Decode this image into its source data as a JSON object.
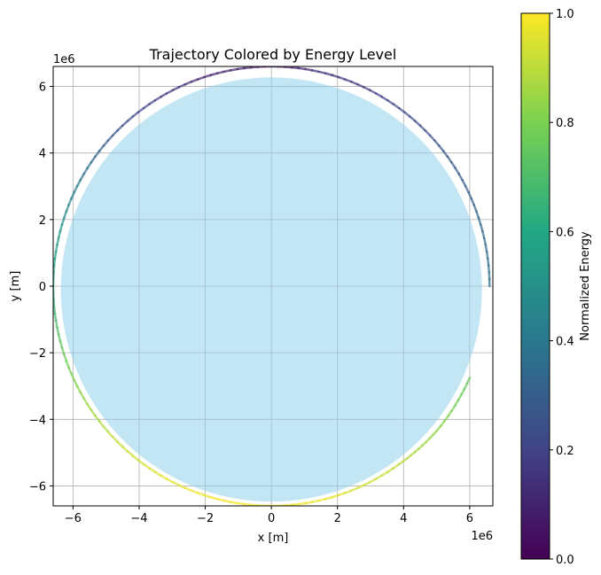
{
  "chart_data": {
    "type": "line",
    "title": "Trajectory Colored by Energy Level",
    "xlabel": "x [m]",
    "ylabel": "y [m]",
    "x_offset_label": "1e6",
    "y_offset_label": "1e6",
    "xlim": [
      -6.6,
      6.7
    ],
    "ylim": [
      -6.6,
      6.6
    ],
    "x_ticks": [
      -6,
      -4,
      -2,
      0,
      2,
      4,
      6
    ],
    "y_ticks": [
      -6,
      -4,
      -2,
      0,
      2,
      4,
      6
    ],
    "grid": true,
    "planet": {
      "center": [
        0,
        -0.1
      ],
      "radius": 6.371,
      "color": "#87CEEB",
      "alpha": 0.5
    },
    "trajectory": {
      "description_units": "x and y in units of 1e6 m; energy normalized 0-1",
      "points": [
        {
          "x": 6.6,
          "y": 0.0,
          "energy": 0.36
        },
        {
          "x": 6.27,
          "y": 2.05,
          "energy": 0.33
        },
        {
          "x": 5.33,
          "y": 3.89,
          "energy": 0.28
        },
        {
          "x": 3.86,
          "y": 5.35,
          "energy": 0.22
        },
        {
          "x": 2.03,
          "y": 6.28,
          "energy": 0.15
        },
        {
          "x": 0.0,
          "y": 6.6,
          "energy": 0.08
        },
        {
          "x": -2.03,
          "y": 6.28,
          "energy": 0.1
        },
        {
          "x": -3.86,
          "y": 5.35,
          "energy": 0.2
        },
        {
          "x": -5.33,
          "y": 3.89,
          "energy": 0.33
        },
        {
          "x": -6.27,
          "y": 2.05,
          "energy": 0.48
        },
        {
          "x": -6.6,
          "y": 0.0,
          "energy": 0.62
        },
        {
          "x": -6.27,
          "y": -2.05,
          "energy": 0.76
        },
        {
          "x": -5.33,
          "y": -3.89,
          "energy": 0.87
        },
        {
          "x": -3.86,
          "y": -5.35,
          "energy": 0.94
        },
        {
          "x": -2.03,
          "y": -6.28,
          "energy": 0.98
        },
        {
          "x": 0.0,
          "y": -6.6,
          "energy": 1.0
        },
        {
          "x": 2.03,
          "y": -6.28,
          "energy": 0.96
        },
        {
          "x": 3.86,
          "y": -5.35,
          "energy": 0.9
        },
        {
          "x": 5.0,
          "y": -4.35,
          "energy": 0.83
        },
        {
          "x": 6.0,
          "y": -2.75,
          "energy": 0.74
        }
      ]
    },
    "colorbar": {
      "label": "Normalized Energy",
      "range": [
        0.0,
        1.0
      ],
      "ticks": [
        "0.0",
        "0.2",
        "0.4",
        "0.6",
        "0.8",
        "1.0"
      ],
      "colormap": "viridis",
      "stops": [
        "#440154",
        "#414487",
        "#2a788e",
        "#22a884",
        "#7ad151",
        "#fde725"
      ]
    }
  }
}
